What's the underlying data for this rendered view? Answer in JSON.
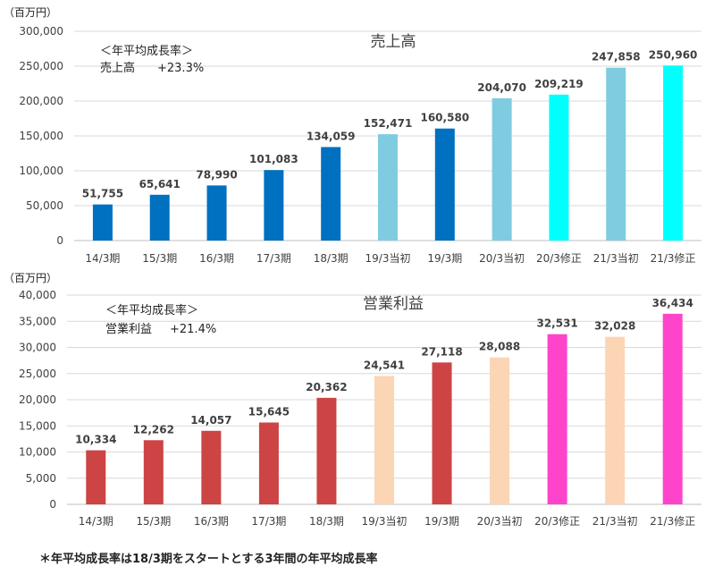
{
  "unit_label": "（百万円）",
  "footnote": "＊年平均成長率は18/3期をスタートとする3年間の年平均成長率",
  "colors": {
    "actual_sales": "#0070C0",
    "initial_sales": "#7FCCE0",
    "revised_sales": "#00FFFF",
    "actual_profit": "#CC4444",
    "initial_profit": "#FCD5B5",
    "revised_profit": "#FF44CC",
    "grid": "#d9d9d9",
    "text": "#404040"
  },
  "chart_data": [
    {
      "type": "bar",
      "title": "売上高",
      "ylabel": "（百万円）",
      "ylim": [
        0,
        300000
      ],
      "yticks": [
        "0",
        "50,000",
        "100,000",
        "150,000",
        "200,000",
        "250,000",
        "300,000"
      ],
      "categories": [
        "14/3期",
        "15/3期",
        "16/3期",
        "17/3期",
        "18/3期",
        "19/3当初",
        "19/3期",
        "20/3当初",
        "20/3修正",
        "21/3当初",
        "21/3修正"
      ],
      "values": [
        51755,
        65641,
        78990,
        101083,
        134059,
        152471,
        160580,
        204070,
        209219,
        247858,
        250960
      ],
      "labels": [
        "51,755",
        "65,641",
        "78,990",
        "101,083",
        "134,059",
        "152,471",
        "160,580",
        "204,070",
        "209,219",
        "247,858",
        "250,960"
      ],
      "bar_kinds": [
        "actual",
        "actual",
        "actual",
        "actual",
        "actual",
        "initial",
        "actual",
        "initial",
        "revised",
        "initial",
        "revised"
      ],
      "cagr_title": "＜年平均成長率＞",
      "cagr_label": "売上高",
      "cagr_value": "+23.3%"
    },
    {
      "type": "bar",
      "title": "営業利益",
      "ylabel": "（百万円）",
      "ylim": [
        0,
        40000
      ],
      "yticks": [
        "0",
        "5,000",
        "10,000",
        "15,000",
        "20,000",
        "25,000",
        "30,000",
        "35,000",
        "40,000"
      ],
      "categories": [
        "14/3期",
        "15/3期",
        "16/3期",
        "17/3期",
        "18/3期",
        "19/3当初",
        "19/3期",
        "20/3当初",
        "20/3修正",
        "21/3当初",
        "21/3修正"
      ],
      "values": [
        10334,
        12262,
        14057,
        15645,
        20362,
        24541,
        27118,
        28088,
        32531,
        32028,
        36434
      ],
      "labels": [
        "10,334",
        "12,262",
        "14,057",
        "15,645",
        "20,362",
        "24,541",
        "27,118",
        "28,088",
        "32,531",
        "32,028",
        "36,434"
      ],
      "bar_kinds": [
        "actual",
        "actual",
        "actual",
        "actual",
        "actual",
        "initial",
        "actual",
        "initial",
        "revised",
        "initial",
        "revised"
      ],
      "cagr_title": "＜年平均成長率＞",
      "cagr_label": "営業利益",
      "cagr_value": "+21.4%"
    }
  ]
}
